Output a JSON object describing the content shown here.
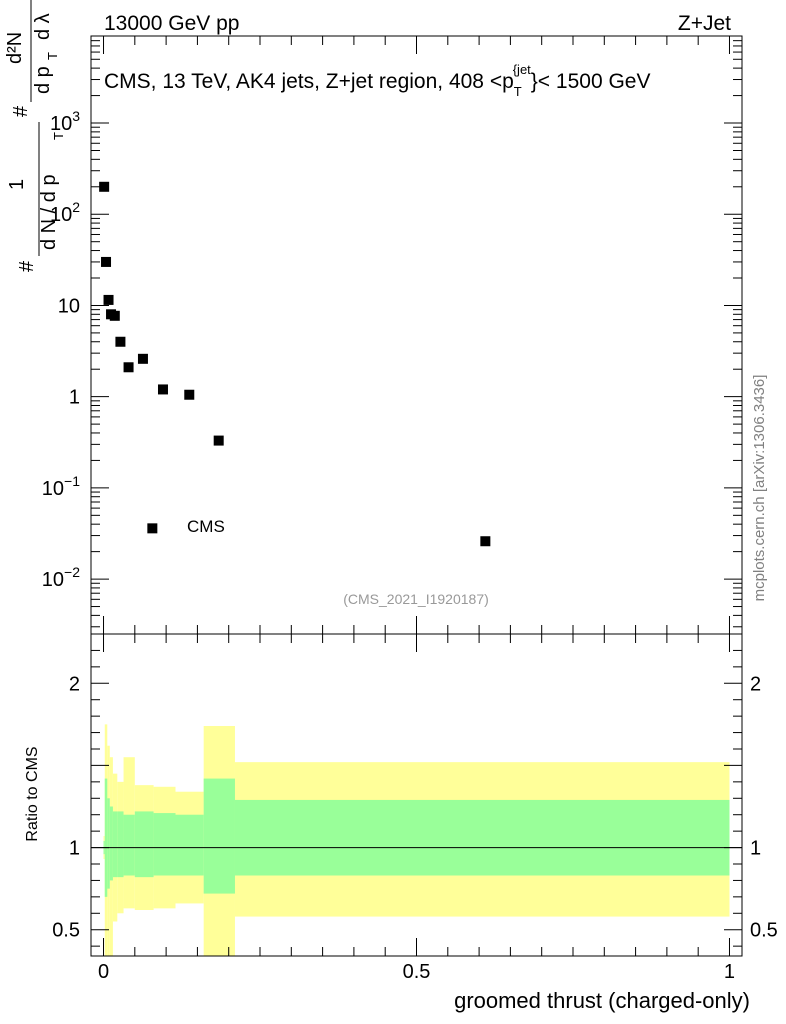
{
  "header": {
    "left": "13000 GeV pp",
    "right": "Z+Jet"
  },
  "watermark": "mcplots.cern.ch [arXiv:1306.3436]",
  "analysis_tag": "(CMS_2021_I1920187)",
  "colors": {
    "yellow_band": "#ffff99",
    "green_band": "#99ff99",
    "marker": "#000000",
    "tag_text": "#999999",
    "watermark_text": "#808080"
  },
  "chart_data": [
    {
      "type": "scatter",
      "panel": "main",
      "title": "CMS, 13 TeV, AK4 jets, Z+jet region, 408 <p_T^{jet}< 1500 GeV",
      "title_parts": {
        "pre": "CMS, 13 TeV, AK4 jets, Z+jet region, 408 <p",
        "sub": "T",
        "sup": "{jet",
        "post": "}< 1500 GeV"
      },
      "ylabel": "1/dN/dpT # d²N/dpT dλ",
      "ylabel_parts": {
        "hash": "#",
        "one": "1",
        "den_left": "d N / d p",
        "T": "T",
        "hash2": "#",
        "dN2": "d²N",
        "dpT": "d p",
        "dlam": "d λ"
      },
      "xlabel": "",
      "yscale": "log",
      "xlim": [
        -0.02,
        1.02
      ],
      "ylim": [
        0.0025,
        9000
      ],
      "y_ticks": [
        {
          "value": 0.01,
          "base": "10",
          "exp": "−2"
        },
        {
          "value": 0.1,
          "base": "10",
          "exp": "−1"
        },
        {
          "value": 1,
          "base": "1",
          "exp": ""
        },
        {
          "value": 10,
          "base": "10",
          "exp": ""
        },
        {
          "value": 100,
          "base": "10",
          "exp": "2"
        },
        {
          "value": 1000,
          "base": "10",
          "exp": "3"
        }
      ],
      "legend": {
        "label": "CMS",
        "position": "left-middle",
        "x": 0.078,
        "y": 0.036
      },
      "series": [
        {
          "name": "CMS",
          "x": [
            0.001,
            0.004,
            0.008,
            0.012,
            0.018,
            0.027,
            0.04,
            0.063,
            0.095,
            0.137,
            0.184,
            0.61
          ],
          "y": [
            200,
            30,
            11.5,
            8.0,
            7.7,
            4.0,
            2.1,
            2.6,
            1.2,
            1.05,
            0.33,
            0.026
          ]
        }
      ]
    },
    {
      "type": "area",
      "panel": "ratio",
      "ylabel": "Ratio to CMS",
      "xlabel": "groomed thrust (charged-only)",
      "xlim": [
        -0.02,
        1.02
      ],
      "ylim": [
        0.34,
        2.3
      ],
      "x_ticks": [
        {
          "value": 0,
          "label": "0"
        },
        {
          "value": 0.5,
          "label": "0.5"
        },
        {
          "value": 1,
          "label": "1"
        }
      ],
      "y_ticks": [
        {
          "value": 0.5,
          "label": "0.5"
        },
        {
          "value": 1,
          "label": "1"
        },
        {
          "value": 2,
          "label": "2"
        }
      ],
      "reference_line": 1,
      "bands": [
        {
          "name": "total uncertainty",
          "bins": [
            {
              "x0": 0.0,
              "x1": 0.002,
              "lo": 0.93,
              "hi": 1.07
            },
            {
              "x0": 0.002,
              "x1": 0.006,
              "lo": 0.2,
              "hi": 1.75
            },
            {
              "x0": 0.006,
              "x1": 0.01,
              "lo": 0.2,
              "hi": 1.62
            },
            {
              "x0": 0.01,
              "x1": 0.015,
              "lo": 0.3,
              "hi": 1.55
            },
            {
              "x0": 0.015,
              "x1": 0.022,
              "lo": 0.55,
              "hi": 1.45
            },
            {
              "x0": 0.022,
              "x1": 0.032,
              "lo": 0.6,
              "hi": 1.4
            },
            {
              "x0": 0.032,
              "x1": 0.05,
              "lo": 0.63,
              "hi": 1.55
            },
            {
              "x0": 0.05,
              "x1": 0.08,
              "lo": 0.62,
              "hi": 1.38
            },
            {
              "x0": 0.08,
              "x1": 0.115,
              "lo": 0.63,
              "hi": 1.37
            },
            {
              "x0": 0.115,
              "x1": 0.16,
              "lo": 0.66,
              "hi": 1.34
            },
            {
              "x0": 0.16,
              "x1": 0.21,
              "lo": 0.28,
              "hi": 1.74
            },
            {
              "x0": 0.21,
              "x1": 1.0,
              "lo": 0.58,
              "hi": 1.52
            }
          ]
        },
        {
          "name": "statistical uncertainty",
          "bins": [
            {
              "x0": 0.0,
              "x1": 0.002,
              "lo": 0.96,
              "hi": 1.04
            },
            {
              "x0": 0.002,
              "x1": 0.006,
              "lo": 0.7,
              "hi": 1.42
            },
            {
              "x0": 0.006,
              "x1": 0.01,
              "lo": 0.75,
              "hi": 1.3
            },
            {
              "x0": 0.01,
              "x1": 0.015,
              "lo": 0.8,
              "hi": 1.25
            },
            {
              "x0": 0.015,
              "x1": 0.022,
              "lo": 0.82,
              "hi": 1.22
            },
            {
              "x0": 0.022,
              "x1": 0.032,
              "lo": 0.82,
              "hi": 1.22
            },
            {
              "x0": 0.032,
              "x1": 0.05,
              "lo": 0.83,
              "hi": 1.2
            },
            {
              "x0": 0.05,
              "x1": 0.08,
              "lo": 0.82,
              "hi": 1.22
            },
            {
              "x0": 0.08,
              "x1": 0.115,
              "lo": 0.83,
              "hi": 1.21
            },
            {
              "x0": 0.115,
              "x1": 0.16,
              "lo": 0.83,
              "hi": 1.2
            },
            {
              "x0": 0.16,
              "x1": 0.21,
              "lo": 0.72,
              "hi": 1.42
            },
            {
              "x0": 0.21,
              "x1": 1.0,
              "lo": 0.83,
              "hi": 1.29
            }
          ]
        }
      ]
    }
  ]
}
